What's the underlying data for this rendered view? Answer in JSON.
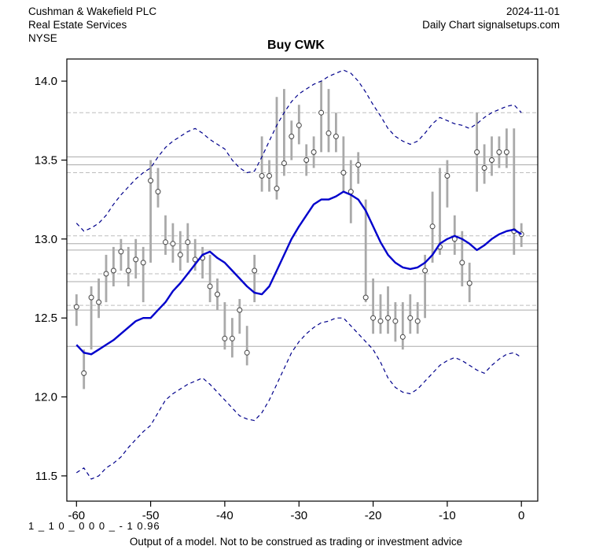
{
  "header": {
    "company": "Cushman & Wakefield PLC",
    "sector": "Real Estate Services",
    "exchange": "NYSE",
    "date": "2024-11-01",
    "source": "Daily Chart signalsetups.com"
  },
  "title": "Buy CWK",
  "footer": {
    "model_code": "1 _ 1 0 _ 0 0 0 _ - 1 0.96",
    "disclaimer": "Output of a model. Not to be construed as trading or investment advice"
  },
  "chart_data": {
    "type": "line",
    "title": "Buy CWK",
    "xlabel": "",
    "ylabel": "",
    "xlim": [
      -61.3,
      2.2
    ],
    "ylim": [
      11.34,
      14.14
    ],
    "x_ticks": [
      -60,
      -50,
      -40,
      -30,
      -20,
      -10,
      0
    ],
    "y_ticks": [
      11.5,
      12.0,
      12.5,
      13.0,
      13.5,
      14.0
    ],
    "grid": false,
    "legend": "none",
    "colors": {
      "bar": "#a9a9a9",
      "close_marker_fill": "#ffffff",
      "close_marker_stroke": "#444444",
      "ma_line": "#0000cc",
      "band_line": "#00008b",
      "level_solid": "#aaaaaa",
      "level_dashed": "#bdbdbd",
      "axis": "#000000"
    },
    "x": [
      -60,
      -59,
      -58,
      -57,
      -56,
      -55,
      -54,
      -53,
      -52,
      -51,
      -50,
      -49,
      -48,
      -47,
      -46,
      -45,
      -44,
      -43,
      -42,
      -41,
      -40,
      -39,
      -38,
      -37,
      -36,
      -35,
      -34,
      -33,
      -32,
      -31,
      -30,
      -29,
      -28,
      -27,
      -26,
      -25,
      -24,
      -23,
      -22,
      -21,
      -20,
      -19,
      -18,
      -17,
      -16,
      -15,
      -14,
      -13,
      -12,
      -11,
      -10,
      -9,
      -8,
      -7,
      -6,
      -5,
      -4,
      -3,
      -2,
      -1,
      0
    ],
    "bars": {
      "high": [
        12.65,
        12.3,
        12.7,
        12.75,
        12.9,
        12.95,
        13.0,
        12.95,
        13.0,
        12.95,
        13.5,
        13.45,
        13.15,
        13.1,
        13.05,
        13.1,
        13.0,
        12.95,
        12.9,
        12.75,
        12.6,
        12.5,
        12.62,
        12.45,
        12.9,
        13.65,
        13.5,
        13.9,
        13.95,
        13.75,
        13.85,
        13.6,
        13.65,
        14.0,
        13.95,
        13.8,
        13.65,
        13.5,
        13.55,
        13.25,
        12.75,
        12.65,
        12.7,
        12.6,
        12.6,
        12.65,
        12.6,
        12.9,
        13.3,
        13.45,
        13.5,
        13.15,
        13.05,
        12.85,
        13.8,
        13.6,
        13.65,
        13.65,
        13.7,
        13.7,
        13.1
      ],
      "low": [
        12.45,
        12.05,
        12.3,
        12.5,
        12.6,
        12.7,
        12.8,
        12.7,
        12.75,
        12.6,
        12.85,
        13.2,
        12.9,
        12.85,
        12.8,
        12.85,
        12.8,
        12.75,
        12.6,
        12.55,
        12.3,
        12.25,
        12.4,
        12.2,
        12.6,
        13.3,
        13.3,
        13.25,
        13.4,
        13.5,
        13.6,
        13.4,
        13.45,
        13.55,
        13.55,
        13.55,
        13.3,
        13.1,
        13.35,
        12.6,
        12.4,
        12.4,
        12.4,
        12.35,
        12.3,
        12.4,
        12.4,
        12.5,
        12.85,
        12.9,
        13.2,
        12.9,
        12.7,
        12.6,
        13.3,
        13.35,
        13.4,
        13.45,
        13.45,
        12.9,
        12.95
      ],
      "close": [
        12.57,
        12.15,
        12.63,
        12.6,
        12.78,
        12.8,
        12.92,
        12.8,
        12.87,
        12.85,
        13.37,
        13.3,
        12.98,
        12.97,
        12.9,
        12.98,
        12.87,
        12.88,
        12.7,
        12.65,
        12.37,
        12.37,
        12.55,
        12.28,
        12.8,
        13.4,
        13.4,
        13.32,
        13.48,
        13.65,
        13.72,
        13.5,
        13.55,
        13.8,
        13.67,
        13.65,
        13.42,
        13.3,
        13.47,
        12.63,
        12.5,
        12.48,
        12.5,
        12.48,
        12.38,
        12.5,
        12.48,
        12.8,
        13.08,
        12.95,
        13.4,
        13.0,
        12.85,
        12.72,
        13.55,
        13.45,
        13.5,
        13.55,
        13.55,
        13.05,
        13.03
      ]
    },
    "series": [
      {
        "name": "moving-average",
        "style": "solid",
        "color": "#0000cc",
        "width": 2.4,
        "values": [
          12.33,
          12.28,
          12.27,
          12.3,
          12.33,
          12.36,
          12.4,
          12.44,
          12.48,
          12.5,
          12.5,
          12.55,
          12.6,
          12.67,
          12.72,
          12.78,
          12.84,
          12.9,
          12.92,
          12.88,
          12.85,
          12.8,
          12.75,
          12.7,
          12.66,
          12.65,
          12.7,
          12.8,
          12.9,
          13.0,
          13.08,
          13.15,
          13.22,
          13.25,
          13.25,
          13.27,
          13.3,
          13.28,
          13.25,
          13.18,
          13.08,
          12.98,
          12.9,
          12.85,
          12.82,
          12.81,
          12.82,
          12.85,
          12.9,
          12.97,
          13.0,
          13.02,
          13.0,
          12.97,
          12.93,
          12.96,
          13.0,
          13.03,
          13.05,
          13.06,
          13.03
        ]
      },
      {
        "name": "upper-band",
        "style": "dashed",
        "color": "#00008b",
        "width": 1.2,
        "values": [
          13.1,
          13.05,
          13.07,
          13.1,
          13.15,
          13.22,
          13.28,
          13.33,
          13.38,
          13.42,
          13.45,
          13.52,
          13.58,
          13.62,
          13.65,
          13.68,
          13.7,
          13.67,
          13.63,
          13.6,
          13.57,
          13.5,
          13.45,
          13.42,
          13.43,
          13.52,
          13.62,
          13.72,
          13.8,
          13.87,
          13.92,
          13.95,
          13.98,
          14.0,
          14.03,
          14.05,
          14.07,
          14.05,
          14.0,
          13.93,
          13.85,
          13.78,
          13.7,
          13.65,
          13.62,
          13.6,
          13.62,
          13.67,
          13.73,
          13.77,
          13.75,
          13.73,
          13.72,
          13.7,
          13.73,
          13.77,
          13.8,
          13.82,
          13.84,
          13.85,
          13.8
        ]
      },
      {
        "name": "lower-band",
        "style": "dashed",
        "color": "#00008b",
        "width": 1.2,
        "values": [
          11.52,
          11.55,
          11.48,
          11.5,
          11.55,
          11.58,
          11.62,
          11.68,
          11.73,
          11.78,
          11.82,
          11.9,
          11.98,
          12.02,
          12.05,
          12.08,
          12.1,
          12.12,
          12.08,
          12.03,
          11.98,
          11.93,
          11.88,
          11.86,
          11.85,
          11.9,
          11.98,
          12.08,
          12.18,
          12.28,
          12.35,
          12.4,
          12.44,
          12.47,
          12.48,
          12.5,
          12.5,
          12.45,
          12.4,
          12.35,
          12.3,
          12.22,
          12.12,
          12.06,
          12.03,
          12.02,
          12.05,
          12.1,
          12.15,
          12.2,
          12.23,
          12.25,
          12.23,
          12.2,
          12.17,
          12.15,
          12.2,
          12.24,
          12.27,
          12.28,
          12.25
        ]
      }
    ],
    "levels": [
      {
        "value": 13.8,
        "style": "dashed"
      },
      {
        "value": 13.52,
        "style": "solid"
      },
      {
        "value": 13.47,
        "style": "solid"
      },
      {
        "value": 13.42,
        "style": "dashed"
      },
      {
        "value": 13.02,
        "style": "dashed"
      },
      {
        "value": 12.97,
        "style": "solid"
      },
      {
        "value": 12.93,
        "style": "solid"
      },
      {
        "value": 12.78,
        "style": "dashed"
      },
      {
        "value": 12.73,
        "style": "solid"
      },
      {
        "value": 12.58,
        "style": "dashed"
      },
      {
        "value": 12.55,
        "style": "solid"
      },
      {
        "value": 12.32,
        "style": "solid"
      }
    ]
  }
}
